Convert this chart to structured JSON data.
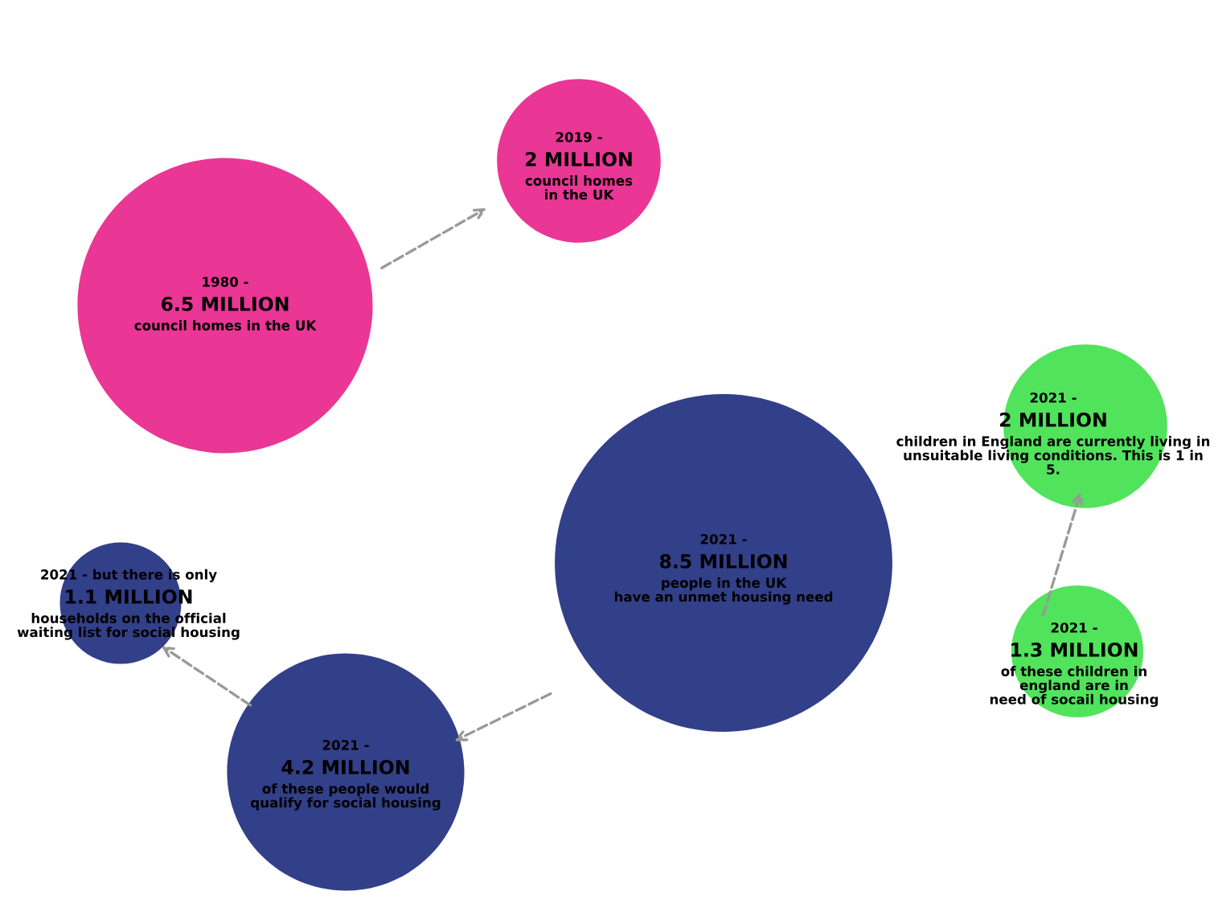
{
  "chart_data": {
    "type": "other",
    "categories": [
      "1980 -",
      "2019 -",
      "2021 -",
      "2021 -",
      "2021 -",
      "2021 -",
      "2021 - but there is only"
    ],
    "values": [
      6.5,
      2,
      8.5,
      2,
      1.3,
      4.2,
      1.1
    ],
    "value_labels": [
      "6.5 MILLION",
      "2 MILLION",
      "8.5 MILLION",
      "2 MILLION",
      "1.3 MILLION",
      "4.2 MILLION",
      "1.1 MILLION"
    ],
    "annotations": [
      "council homes in the UK",
      "council homes\nin the UK",
      "people in the UK\nhave an unmet housing need",
      "children in England are currently living in\nunsuitable living conditions. This is 1 in\n5.",
      "of these children in\nengland are in\nneed of socail housing",
      "of these people would\nqualify for social housing",
      "households on the official\nwaiting list for social housing"
    ],
    "colors": [
      "#e8208a",
      "#e8208a",
      "#1c2a7c",
      "#3ee04a",
      "#3ee04a",
      "#1c2a7c",
      "#1c2a7c"
    ]
  }
}
